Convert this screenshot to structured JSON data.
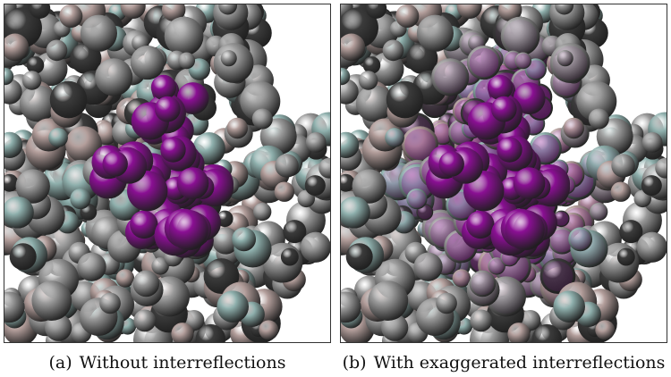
{
  "figure": {
    "panels": [
      {
        "id": "a",
        "tag": "(a)",
        "caption": "Without interreflections",
        "interreflections": false
      },
      {
        "id": "b",
        "tag": "(b)",
        "caption": "With exaggerated interreflections",
        "interreflections": true
      }
    ],
    "colors": {
      "ligand": "#8a0f93",
      "protein_gray": "#9a9a9a",
      "protein_teal": "#8fb0ad",
      "protein_pink": "#b39e9b",
      "protein_dark": "#3b3b3b",
      "background": "#ffffff"
    }
  }
}
